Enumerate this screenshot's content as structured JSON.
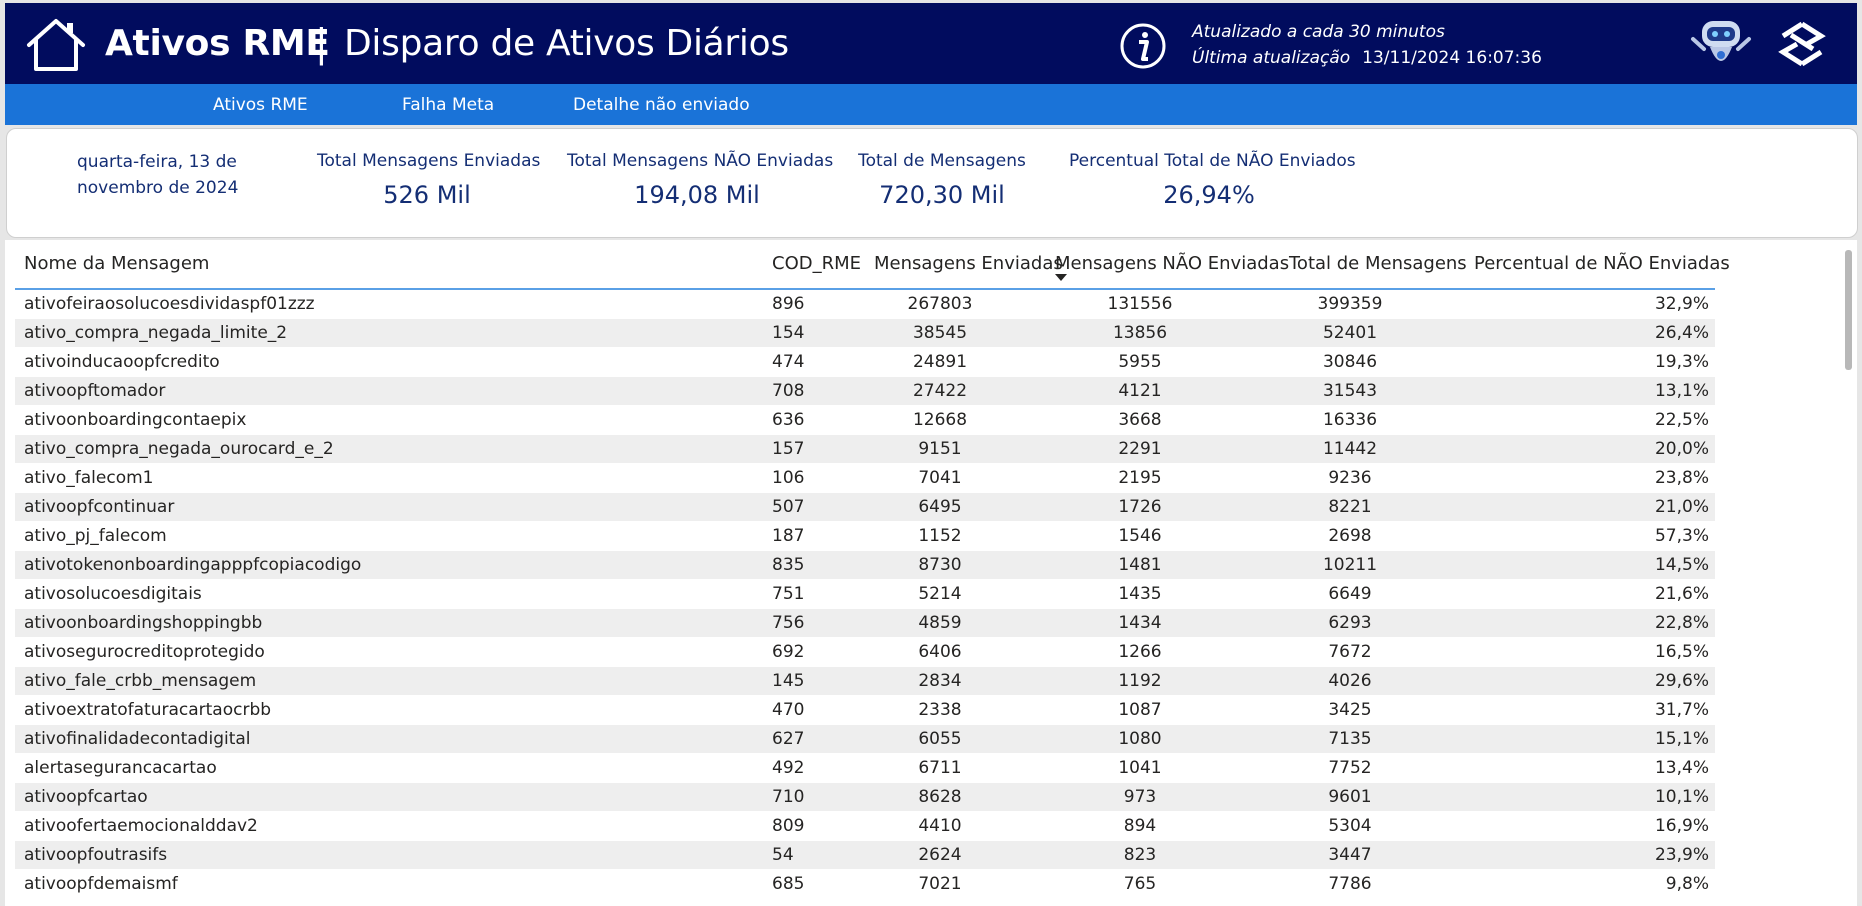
{
  "header": {
    "title": "Ativos RME",
    "separator": "|",
    "subtitle": "Disparo de Ativos Diários",
    "update_line1": "Atualizado a cada 30 minutos",
    "update_label": "Última atualização",
    "update_date": "13/11/2024 16:07:36",
    "brand_color": "#010c5e"
  },
  "nav": {
    "items": [
      "Ativos RME",
      "Falha Meta",
      "Detalhe não enviado"
    ],
    "color": "#1a73d8"
  },
  "kpis": {
    "date": "quarta-feira, 13 de novembro de 2024",
    "sent_label": "Total Mensagens Enviadas",
    "sent_value": "526 Mil",
    "not_sent_label": "Total Mensagens NÃO Enviadas",
    "not_sent_value": "194,08 Mil",
    "total_label": "Total de Mensagens",
    "total_value": "720,30 Mil",
    "pct_label": "Percentual Total de NÃO Enviados",
    "pct_value": "26,94%"
  },
  "table": {
    "columns": [
      "Nome da Mensagem",
      "COD_RME",
      "Mensagens Enviadas",
      "Mensagens NÃO Enviadas",
      "Total de Mensagens",
      "Percentual de NÃO Enviadas"
    ],
    "sorted_column": "Mensagens NÃO Enviadas",
    "rows": [
      [
        "ativofeiraosolucoesdividaspf01zzz",
        "896",
        "267803",
        "131556",
        "399359",
        "32,9%"
      ],
      [
        "ativo_compra_negada_limite_2",
        "154",
        "38545",
        "13856",
        "52401",
        "26,4%"
      ],
      [
        "ativoinducaoopfcredito",
        "474",
        "24891",
        "5955",
        "30846",
        "19,3%"
      ],
      [
        "ativoopftomador",
        "708",
        "27422",
        "4121",
        "31543",
        "13,1%"
      ],
      [
        "ativoonboardingcontaepix",
        "636",
        "12668",
        "3668",
        "16336",
        "22,5%"
      ],
      [
        "ativo_compra_negada_ourocard_e_2",
        "157",
        "9151",
        "2291",
        "11442",
        "20,0%"
      ],
      [
        "ativo_falecom1",
        "106",
        "7041",
        "2195",
        "9236",
        "23,8%"
      ],
      [
        "ativoopfcontinuar",
        "507",
        "6495",
        "1726",
        "8221",
        "21,0%"
      ],
      [
        "ativo_pj_falecom",
        "187",
        "1152",
        "1546",
        "2698",
        "57,3%"
      ],
      [
        "ativotokenonboardingapppfcopiacodigo",
        "835",
        "8730",
        "1481",
        "10211",
        "14,5%"
      ],
      [
        "ativosolucoesdigitais",
        "751",
        "5214",
        "1435",
        "6649",
        "21,6%"
      ],
      [
        "ativoonboardingshoppingbb",
        "756",
        "4859",
        "1434",
        "6293",
        "22,8%"
      ],
      [
        "ativosegurocreditoprotegido",
        "692",
        "6406",
        "1266",
        "7672",
        "16,5%"
      ],
      [
        "ativo_fale_crbb_mensagem",
        "145",
        "2834",
        "1192",
        "4026",
        "29,6%"
      ],
      [
        "ativoextratofaturacartaocrbb",
        "470",
        "2338",
        "1087",
        "3425",
        "31,7%"
      ],
      [
        "ativofinalidadecontadigital",
        "627",
        "6055",
        "1080",
        "7135",
        "15,1%"
      ],
      [
        "alertasegurancacartao",
        "492",
        "6711",
        "1041",
        "7752",
        "13,4%"
      ],
      [
        "ativoopfcartao",
        "710",
        "8628",
        "973",
        "9601",
        "10,1%"
      ],
      [
        "ativoofertaemocionalddav2",
        "809",
        "4410",
        "894",
        "5304",
        "16,9%"
      ],
      [
        "ativoopfoutrasifs",
        "54",
        "2624",
        "823",
        "3447",
        "23,9%"
      ],
      [
        "ativoopfdemaismf",
        "685",
        "7021",
        "765",
        "7786",
        "9,8%"
      ]
    ]
  }
}
